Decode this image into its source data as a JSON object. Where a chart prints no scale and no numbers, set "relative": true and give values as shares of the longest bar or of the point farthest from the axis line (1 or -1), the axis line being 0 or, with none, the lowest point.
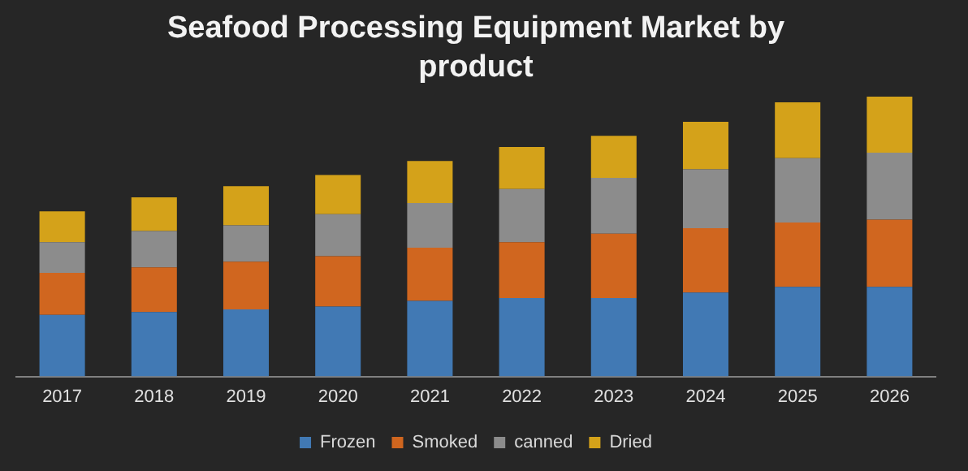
{
  "chart_data": {
    "type": "bar",
    "title": "Seafood Processing Equipment Market by product",
    "relative": true,
    "stacked": true,
    "legend": "bottom",
    "categories": [
      "2017",
      "2018",
      "2019",
      "2020",
      "2021",
      "2022",
      "2023",
      "2024",
      "2025",
      "2026"
    ],
    "series": [
      {
        "name": "Frozen",
        "color": "#4179b4",
        "values": [
          0.22,
          0.23,
          0.24,
          0.25,
          0.27,
          0.28,
          0.28,
          0.3,
          0.32,
          0.32
        ]
      },
      {
        "name": "Smoked",
        "color": "#d0661f",
        "values": [
          0.15,
          0.16,
          0.17,
          0.18,
          0.19,
          0.2,
          0.23,
          0.23,
          0.23,
          0.24
        ]
      },
      {
        "name": "canned",
        "color": "#8c8c8c",
        "values": [
          0.11,
          0.13,
          0.13,
          0.15,
          0.16,
          0.19,
          0.2,
          0.21,
          0.23,
          0.24
        ]
      },
      {
        "name": "Dried",
        "color": "#d4a21a",
        "values": [
          0.11,
          0.12,
          0.14,
          0.14,
          0.15,
          0.15,
          0.15,
          0.17,
          0.2,
          0.2
        ]
      }
    ]
  }
}
